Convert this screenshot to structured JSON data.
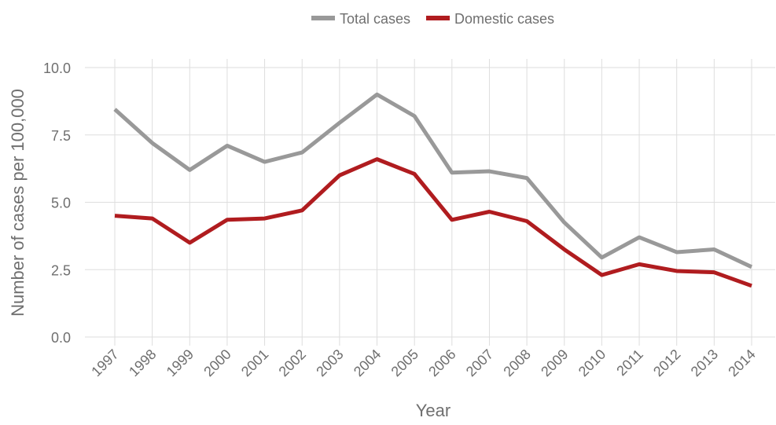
{
  "chart_data": {
    "type": "line",
    "x_label": "Year",
    "y_label": "Number of cases per 100,000",
    "categories": [
      "1997",
      "1998",
      "1999",
      "2000",
      "2001",
      "2002",
      "2003",
      "2004",
      "2005",
      "2006",
      "2007",
      "2008",
      "2009",
      "2010",
      "2011",
      "2012",
      "2013",
      "2014"
    ],
    "series": [
      {
        "name": "Total cases",
        "color": "#999999",
        "values": [
          8.45,
          7.2,
          6.2,
          7.1,
          6.5,
          6.85,
          7.95,
          9.0,
          8.2,
          6.1,
          6.15,
          5.9,
          4.25,
          2.95,
          3.7,
          3.15,
          3.25,
          2.6
        ]
      },
      {
        "name": "Domestic cases",
        "color": "#b01c1f",
        "values": [
          4.5,
          4.4,
          3.5,
          4.35,
          4.4,
          4.7,
          6.0,
          6.6,
          6.05,
          4.35,
          4.65,
          4.3,
          3.25,
          2.3,
          2.7,
          2.45,
          2.4,
          1.9
        ]
      }
    ],
    "ylim": [
      0,
      10
    ],
    "yticks": [
      {
        "value": 0,
        "label": "0.0"
      },
      2.5,
      {
        "value": 5,
        "label": "5.0"
      },
      7.5,
      {
        "value": 10,
        "label": "10.0"
      }
    ],
    "grid": true,
    "legend": "top"
  }
}
